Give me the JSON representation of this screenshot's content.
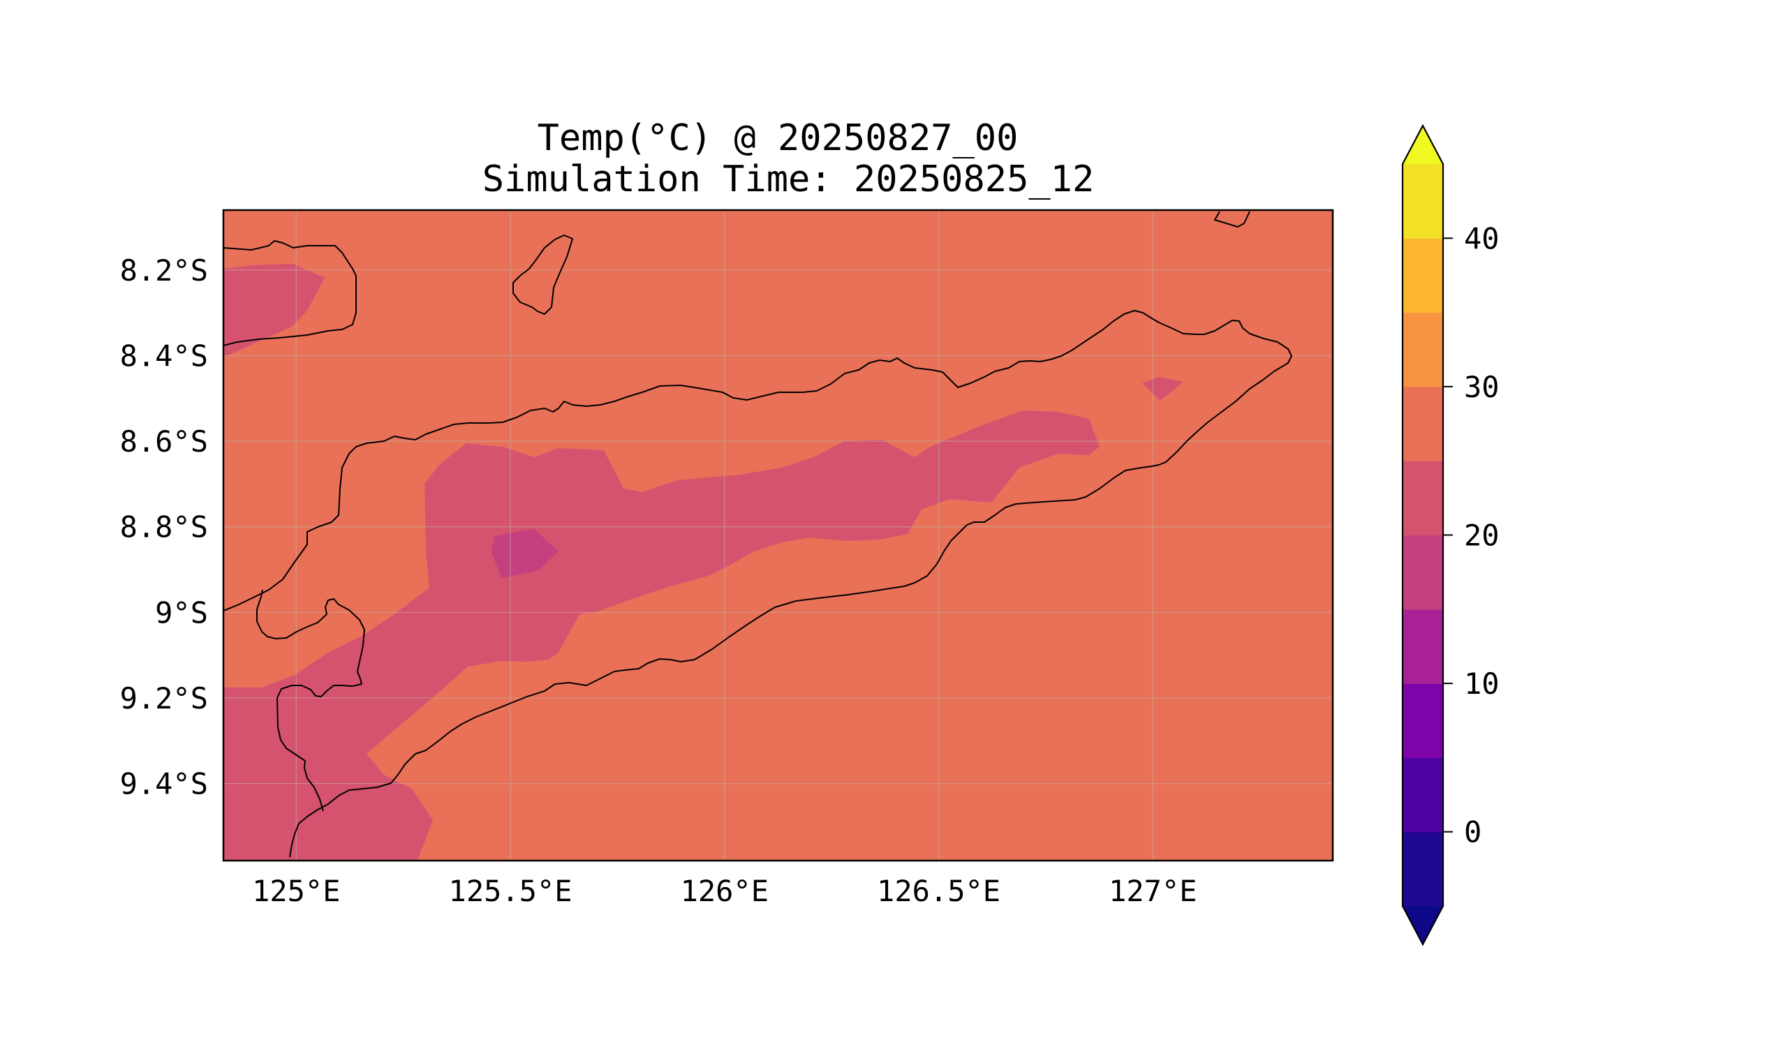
{
  "chart_data": {
    "type": "heatmap",
    "title": "Temp(°C) @ 20250827_00",
    "subtitle": "Simulation Time: 20250825_12",
    "xlabel": "",
    "ylabel": "",
    "x_ticks": [
      {
        "value": 125.0,
        "label": "125°E"
      },
      {
        "value": 125.5,
        "label": "125.5°E"
      },
      {
        "value": 126.0,
        "label": "126°E"
      },
      {
        "value": 126.5,
        "label": "126.5°E"
      },
      {
        "value": 127.0,
        "label": "127°E"
      }
    ],
    "y_ticks": [
      {
        "value": -8.2,
        "label": "8.2°S"
      },
      {
        "value": -8.4,
        "label": "8.4°S"
      },
      {
        "value": -8.6,
        "label": "8.6°S"
      },
      {
        "value": -8.8,
        "label": "8.8°S"
      },
      {
        "value": -9.0,
        "label": "9°S"
      },
      {
        "value": -9.2,
        "label": "9.2°S"
      },
      {
        "value": -9.4,
        "label": "9.4°S"
      }
    ],
    "xlim": [
      124.83,
      127.42
    ],
    "ylim": [
      -9.58,
      -8.06
    ],
    "grid": true,
    "colorbar": {
      "min": -5,
      "max": 45,
      "extend": "both",
      "levels": [
        -5,
        0,
        5,
        10,
        15,
        20,
        25,
        30,
        35,
        40,
        45
      ],
      "colors": [
        "#200792",
        "#4f02a3",
        "#7e03a8",
        "#a82296",
        "#c5407e",
        "#d5536f",
        "#e97158",
        "#f89441",
        "#fdb42f",
        "#f3e128"
      ],
      "under_color": "#0d0887",
      "over_color": "#f0f921",
      "tick_values": [
        0,
        10,
        20,
        30,
        40
      ],
      "tick_labels": [
        "0",
        "10",
        "20",
        "30",
        "40"
      ]
    },
    "fields": [
      {
        "range": "25-30",
        "color": "#e97158"
      },
      {
        "range": "20-25",
        "color": "#d5536f"
      },
      {
        "range": "15-20",
        "color": "#c5407e"
      }
    ]
  }
}
